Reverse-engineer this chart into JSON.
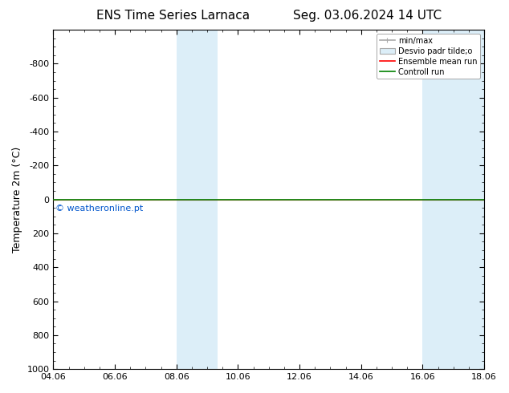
{
  "title_left": "ENS Time Series Larnaca",
  "title_right": "Seg. 03.06.2024 14 UTC",
  "ylabel": "Temperature 2m (°C)",
  "xtick_labels": [
    "04.06",
    "06.06",
    "08.06",
    "10.06",
    "12.06",
    "14.06",
    "16.06",
    "18.06"
  ],
  "xtick_positions": [
    0,
    2,
    4,
    6,
    8,
    10,
    12,
    14
  ],
  "ylim_top": -1000,
  "ylim_bottom": 1000,
  "ytick_positions": [
    -800,
    -600,
    -400,
    -200,
    0,
    200,
    400,
    600,
    800,
    1000
  ],
  "ytick_labels": [
    "-800",
    "-600",
    "-400",
    "-200",
    "0",
    "200",
    "400",
    "600",
    "800",
    "1000"
  ],
  "shaded_bands": [
    {
      "x_start": 4.0,
      "x_end": 4.67,
      "color": "#dceef8"
    },
    {
      "x_start": 4.67,
      "x_end": 5.33,
      "color": "#dceef8"
    },
    {
      "x_start": 12.0,
      "x_end": 12.67,
      "color": "#dceef8"
    },
    {
      "x_start": 12.67,
      "x_end": 14.0,
      "color": "#dceef8"
    }
  ],
  "control_run_y": 0,
  "ensemble_mean_y": 0,
  "control_run_color": "#008000",
  "ensemble_mean_color": "#ff0000",
  "watermark": "© weatheronline.pt",
  "watermark_color": "#0055cc",
  "watermark_x_data": 0,
  "watermark_y_data": 30,
  "background_color": "#ffffff",
  "legend_minmax_color": "#aaaaaa",
  "legend_std_facecolor": "#dceef8",
  "legend_std_edgecolor": "#aaaaaa",
  "legend_ensemble_color": "#ff0000",
  "legend_control_color": "#008000",
  "font_size_title": 11,
  "font_size_tick": 8,
  "font_size_legend": 7,
  "font_size_ylabel": 9,
  "font_size_watermark": 8
}
